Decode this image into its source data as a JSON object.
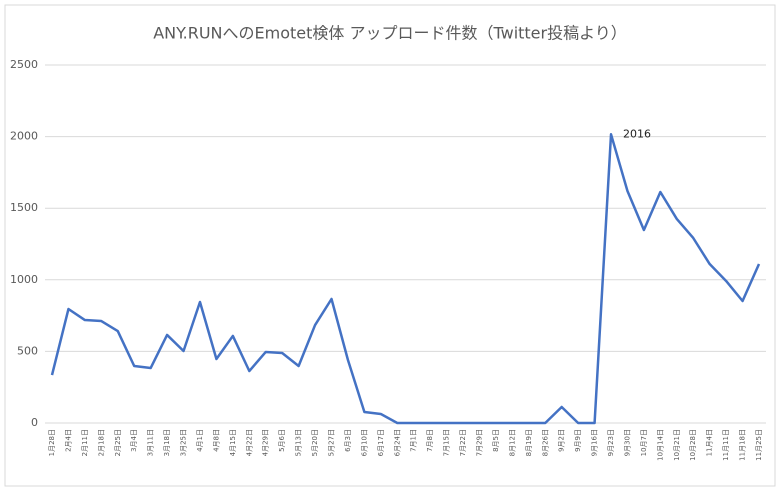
{
  "chart_data": {
    "type": "line",
    "title": "ANY.RUNへのEmotet検体 アップロード件数（Twitter投稿より）",
    "annotation": "2016",
    "categories": [
      "1月28日",
      "2月4日",
      "2月11日",
      "2月18日",
      "2月25日",
      "3月4日",
      "3月11日",
      "3月18日",
      "3月25日",
      "4月1日",
      "4月8日",
      "4月15日",
      "4月22日",
      "4月29日",
      "5月6日",
      "5月13日",
      "5月20日",
      "5月27日",
      "6月3日",
      "6月10日",
      "6月17日",
      "6月24日",
      "7月1日",
      "7月8日",
      "7月15日",
      "7月22日",
      "7月29日",
      "8月5日",
      "8月12日",
      "8月19日",
      "8月26日",
      "9月2日",
      "9月9日",
      "9月16日",
      "9月23日",
      "9月30日",
      "10月7日",
      "10月14日",
      "10月21日",
      "10月28日",
      "11月4日",
      "11月11日",
      "11月18日",
      "11月25日"
    ],
    "series": [
      {
        "name": "Emotet",
        "color": "#4472c4",
        "values": [
          335,
          796,
          719,
          712,
          642,
          398,
          384,
          615,
          503,
          845,
          447,
          608,
          363,
          496,
          489,
          398,
          684,
          866,
          440,
          77,
          63,
          0,
          0,
          0,
          0,
          0,
          0,
          0,
          0,
          0,
          0,
          112,
          0,
          0,
          2016,
          1620,
          1348,
          1613,
          1425,
          1292,
          1110,
          992,
          852,
          1110
        ]
      }
    ],
    "ylim": [
      0,
      2500
    ],
    "yticks": [
      0,
      500,
      1000,
      1500,
      2000,
      2500
    ],
    "grid": true
  }
}
